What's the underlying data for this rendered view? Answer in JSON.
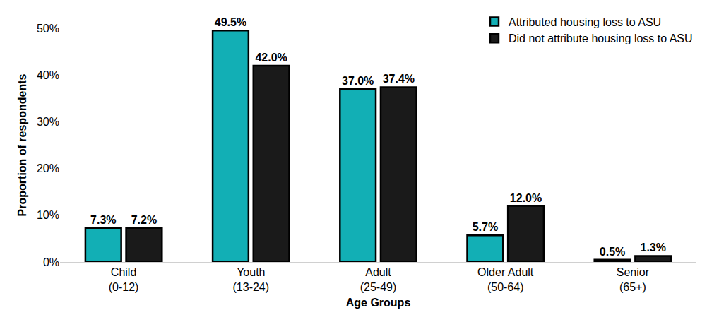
{
  "chart_data": {
    "type": "bar",
    "x_label": "Age Groups",
    "y_label": "Proportion of respondents",
    "categories": [
      "Child\n(0-12)",
      "Youth\n(13-24)",
      "Adult\n(25-49)",
      "Older Adult\n(50-64)",
      "Senior\n(65+)"
    ],
    "series": [
      {
        "name": "Attributed housing loss to ASU",
        "color": "#12AFB5",
        "values": [
          7.3,
          49.5,
          37.0,
          5.7,
          0.5
        ],
        "value_labels": [
          "7.3%",
          "49.5%",
          "37.0%",
          "5.7%",
          "0.5%"
        ]
      },
      {
        "name": "Did not attribute housing loss to ASU",
        "color": "#1A1A1A",
        "values": [
          7.2,
          42.0,
          37.4,
          12.0,
          1.3
        ],
        "value_labels": [
          "7.2%",
          "42.0%",
          "37.4%",
          "12.0%",
          "1.3%"
        ]
      }
    ],
    "ylim": [
      0,
      50
    ],
    "yticks": [
      {
        "value": 0,
        "label": "0%"
      },
      {
        "value": 10,
        "label": "10%"
      },
      {
        "value": 20,
        "label": "20%"
      },
      {
        "value": 30,
        "label": "30%"
      },
      {
        "value": 40,
        "label": "40%"
      },
      {
        "value": 50,
        "label": "50%"
      }
    ],
    "grid": false,
    "legend": "upper right",
    "data_labels": true
  }
}
